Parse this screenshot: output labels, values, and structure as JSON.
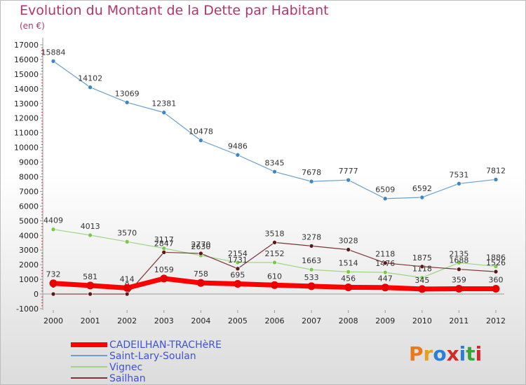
{
  "title": "Evolution du Montant de la Dette par Habitant",
  "subtitle": "(en €)",
  "logo": {
    "text": "Proxiti",
    "colors": [
      "#e87a1a",
      "#e6a11c",
      "#2b7fd6",
      "#d12a2a",
      "#2b7fd6",
      "#3aa63a",
      "#d12a2a"
    ]
  },
  "chart_data": {
    "type": "line",
    "x": [
      "2000",
      "2001",
      "2002",
      "2003",
      "2004",
      "2005",
      "2006",
      "2007",
      "2008",
      "2009",
      "2010",
      "2011",
      "2012"
    ],
    "ylim": [
      -1000,
      17000
    ],
    "yticks": [
      "-1000",
      "0",
      "1000",
      "2000",
      "3000",
      "4000",
      "5000",
      "6000",
      "7000",
      "8000",
      "9000",
      "10000",
      "11000",
      "12000",
      "13000",
      "14000",
      "15000",
      "16000",
      "17000"
    ],
    "grid": false,
    "legend_position": "bottom-left",
    "series": [
      {
        "name": "Saint-Lary-Soulan",
        "color": "#6a9fd0",
        "marker": "#3b88c9",
        "width": 1.2,
        "values": [
          15884,
          14102,
          13069,
          12381,
          10478,
          9486,
          8345,
          7678,
          7777,
          6509,
          6592,
          7531,
          7812
        ],
        "labels": [
          "15884",
          "14102",
          "13069",
          "12381",
          "10478",
          "9486",
          "8345",
          "7678",
          "7777",
          "6509",
          "6592",
          "7531",
          "7812"
        ]
      },
      {
        "name": "Vignec",
        "color": "#9ed584",
        "marker": "#7cc84a",
        "width": 1.2,
        "values": [
          4409,
          4013,
          3570,
          3117,
          2630,
          2154,
          2152,
          1663,
          1514,
          1476,
          1118,
          2135,
          1886
        ],
        "labels": [
          "4409",
          "4013",
          "3570",
          "3117",
          "2630",
          "2154",
          "2152",
          "1663",
          "1514",
          "1476",
          "1118",
          "2135",
          "1886"
        ]
      },
      {
        "name": "Sailhan",
        "color": "#7a3535",
        "marker": "#5a1a1a",
        "width": 1.2,
        "values": [
          0,
          0,
          0,
          2847,
          2770,
          1731,
          3518,
          3278,
          3028,
          2118,
          1875,
          1688,
          1526
        ],
        "labels": [
          "0",
          "0",
          "0",
          "2847",
          "2770",
          "1731",
          "3518",
          "3278",
          "3028",
          "2118",
          "1875",
          "1688",
          "1526"
        ]
      },
      {
        "name": "CADEILHAN-TRACHèRE",
        "color": "#ff0000",
        "marker": "#e80000",
        "width": 7,
        "values": [
          732,
          581,
          414,
          1059,
          758,
          695,
          610,
          533,
          456,
          447,
          345,
          359,
          360
        ],
        "labels": [
          "732",
          "581",
          "414",
          "1059",
          "758",
          "695",
          "610",
          "533",
          "456",
          "447",
          "345",
          "359",
          "360"
        ]
      }
    ]
  },
  "legend": [
    {
      "label": "CADEILHAN-TRACHèRE",
      "color": "#ff0000",
      "thickness": 7
    },
    {
      "label": "Saint-Lary-Soulan",
      "color": "#6a9fd0",
      "thickness": 1.5
    },
    {
      "label": "Vignec",
      "color": "#9ed584",
      "thickness": 1.5
    },
    {
      "label": "Sailhan",
      "color": "#7a3535",
      "thickness": 1.5
    }
  ]
}
